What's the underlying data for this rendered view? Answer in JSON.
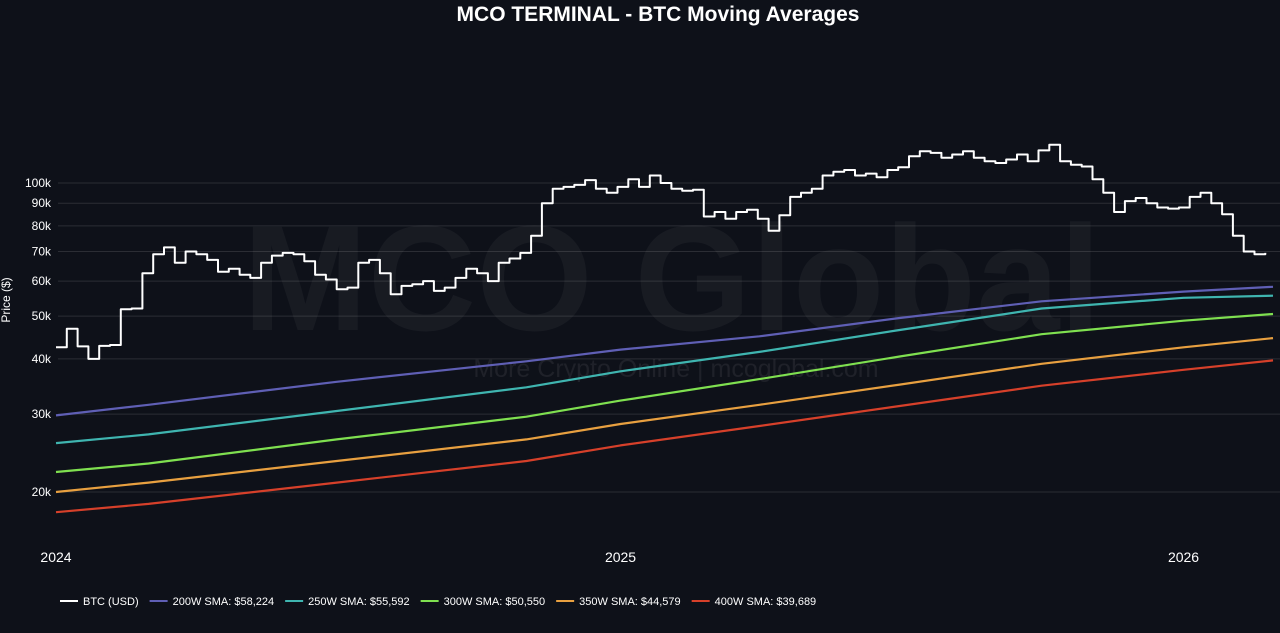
{
  "chart_data": {
    "type": "line",
    "title": "MCO TERMINAL - BTC Moving Averages",
    "xlabel": "",
    "ylabel": "Price ($)",
    "yscale": "log",
    "ylim": [
      15000,
      190000
    ],
    "xlim": [
      "2024-01-01",
      "2026-02-28"
    ],
    "x_ticks": [
      {
        "date": "2024-01-01",
        "label": "2024"
      },
      {
        "date": "2025-01-01",
        "label": "2025"
      },
      {
        "date": "2026-01-01",
        "label": "2026"
      }
    ],
    "y_ticks": [
      {
        "value": 20000,
        "label": "20k"
      },
      {
        "value": 30000,
        "label": "30k"
      },
      {
        "value": 40000,
        "label": "40k"
      },
      {
        "value": 50000,
        "label": "50k"
      },
      {
        "value": 60000,
        "label": "60k"
      },
      {
        "value": 70000,
        "label": "70k"
      },
      {
        "value": 80000,
        "label": "80k"
      },
      {
        "value": 90000,
        "label": "90k"
      },
      {
        "value": 100000,
        "label": "100k"
      }
    ],
    "grid": true,
    "legend_position": "bottom-left",
    "watermark": {
      "main": "MCO Global",
      "sub": "More Crypto Online | mcoglobal.com"
    },
    "series": [
      {
        "name": "BTC (USD)",
        "color": "#ffffff",
        "x": [
          "2024-01-01",
          "2024-01-08",
          "2024-01-15",
          "2024-01-22",
          "2024-01-29",
          "2024-02-05",
          "2024-02-12",
          "2024-02-19",
          "2024-02-26",
          "2024-03-04",
          "2024-03-11",
          "2024-03-18",
          "2024-03-25",
          "2024-04-01",
          "2024-04-08",
          "2024-04-15",
          "2024-04-22",
          "2024-04-29",
          "2024-05-06",
          "2024-05-13",
          "2024-05-20",
          "2024-05-27",
          "2024-06-03",
          "2024-06-10",
          "2024-06-17",
          "2024-06-24",
          "2024-07-01",
          "2024-07-08",
          "2024-07-15",
          "2024-07-22",
          "2024-07-29",
          "2024-08-05",
          "2024-08-12",
          "2024-08-19",
          "2024-08-26",
          "2024-09-02",
          "2024-09-09",
          "2024-09-16",
          "2024-09-23",
          "2024-09-30",
          "2024-10-07",
          "2024-10-14",
          "2024-10-21",
          "2024-10-28",
          "2024-11-04",
          "2024-11-11",
          "2024-11-18",
          "2024-11-25",
          "2024-12-02",
          "2024-12-09",
          "2024-12-16",
          "2024-12-23",
          "2024-12-30",
          "2025-01-06",
          "2025-01-13",
          "2025-01-20",
          "2025-01-27",
          "2025-02-03",
          "2025-02-10",
          "2025-02-17",
          "2025-02-24",
          "2025-03-03",
          "2025-03-10",
          "2025-03-17",
          "2025-03-24",
          "2025-03-31",
          "2025-04-07",
          "2025-04-14",
          "2025-04-21",
          "2025-04-28",
          "2025-05-05",
          "2025-05-12",
          "2025-05-19",
          "2025-05-26",
          "2025-06-02",
          "2025-06-09",
          "2025-06-16",
          "2025-06-23",
          "2025-06-30",
          "2025-07-07",
          "2025-07-14",
          "2025-07-21",
          "2025-07-28",
          "2025-08-04",
          "2025-08-11",
          "2025-08-18",
          "2025-08-25",
          "2025-09-01",
          "2025-09-08",
          "2025-09-15",
          "2025-09-22",
          "2025-09-29",
          "2025-10-06",
          "2025-10-13",
          "2025-10-20",
          "2025-10-27",
          "2025-11-03",
          "2025-11-10",
          "2025-11-17",
          "2025-11-24",
          "2025-12-01",
          "2025-12-08",
          "2025-12-15",
          "2025-12-22",
          "2025-12-29",
          "2026-01-05",
          "2026-01-12",
          "2026-01-19",
          "2026-01-26",
          "2026-02-02",
          "2026-02-09",
          "2026-02-16",
          "2026-02-23"
        ],
        "values": [
          42500,
          46800,
          42700,
          40000,
          42800,
          43000,
          51800,
          52000,
          62500,
          69000,
          71500,
          66000,
          70000,
          69000,
          67000,
          63000,
          64000,
          62000,
          61000,
          66000,
          68500,
          69500,
          69000,
          66500,
          62000,
          60500,
          57500,
          58000,
          66000,
          67000,
          62500,
          56000,
          58500,
          59000,
          60000,
          57000,
          58000,
          61000,
          64000,
          62500,
          60000,
          66000,
          67500,
          69500,
          76000,
          90000,
          97000,
          98000,
          99000,
          101500,
          97000,
          95000,
          98000,
          102000,
          98000,
          104000,
          100000,
          97000,
          96000,
          96500,
          84000,
          86000,
          83000,
          86000,
          87000,
          83000,
          78000,
          84500,
          93000,
          95000,
          97000,
          104000,
          106000,
          107000,
          104000,
          105000,
          103000,
          107000,
          108500,
          115000,
          118000,
          117000,
          114000,
          116000,
          118000,
          114000,
          112000,
          111000,
          113000,
          116000,
          112000,
          118500,
          122000,
          112000,
          110000,
          109000,
          102000,
          95000,
          86000,
          91000,
          92500,
          90000,
          88000,
          87500,
          88000,
          93000,
          95000,
          90000,
          85000,
          76000,
          70000,
          69000,
          69500
        ]
      },
      {
        "name": "200W SMA",
        "color": "#5f5fb5",
        "legend_label": "200W SMA: $58,224",
        "x": [
          "2024-01-01",
          "2024-03-01",
          "2024-07-01",
          "2024-11-01",
          "2025-01-01",
          "2025-04-01",
          "2025-07-01",
          "2025-10-01",
          "2026-01-01",
          "2026-02-28"
        ],
        "values": [
          29800,
          31500,
          35500,
          39500,
          42000,
          45000,
          49500,
          54000,
          56800,
          58224
        ]
      },
      {
        "name": "250W SMA",
        "color": "#3fb5b0",
        "legend_label": "250W SMA: $55,592",
        "x": [
          "2024-01-01",
          "2024-03-01",
          "2024-07-01",
          "2024-11-01",
          "2025-01-01",
          "2025-04-01",
          "2025-07-01",
          "2025-10-01",
          "2026-01-01",
          "2026-02-28"
        ],
        "values": [
          25800,
          27000,
          30500,
          34500,
          37500,
          41500,
          46500,
          52000,
          55000,
          55592
        ]
      },
      {
        "name": "300W SMA",
        "color": "#7fe050",
        "legend_label": "300W SMA: $50,550",
        "x": [
          "2024-01-01",
          "2024-03-01",
          "2024-07-01",
          "2024-11-01",
          "2025-01-01",
          "2025-04-01",
          "2025-07-01",
          "2025-10-01",
          "2026-01-01",
          "2026-02-28"
        ],
        "values": [
          22200,
          23200,
          26300,
          29600,
          32200,
          36000,
          40500,
          45500,
          48800,
          50550
        ]
      },
      {
        "name": "350W SMA",
        "color": "#e8a040",
        "legend_label": "350W SMA: $44,579",
        "x": [
          "2024-01-01",
          "2024-03-01",
          "2024-07-01",
          "2024-11-01",
          "2025-01-01",
          "2025-04-01",
          "2025-07-01",
          "2025-10-01",
          "2026-01-01",
          "2026-02-28"
        ],
        "values": [
          20000,
          21000,
          23500,
          26300,
          28500,
          31500,
          35000,
          39000,
          42500,
          44579
        ]
      },
      {
        "name": "400W SMA",
        "color": "#d6402a",
        "legend_label": "400W SMA: $39,689",
        "x": [
          "2024-01-01",
          "2024-03-01",
          "2024-07-01",
          "2024-11-01",
          "2025-01-01",
          "2025-04-01",
          "2025-07-01",
          "2025-10-01",
          "2026-01-01",
          "2026-02-28"
        ],
        "values": [
          18000,
          18800,
          21000,
          23500,
          25500,
          28200,
          31300,
          34800,
          37800,
          39689
        ]
      }
    ]
  }
}
